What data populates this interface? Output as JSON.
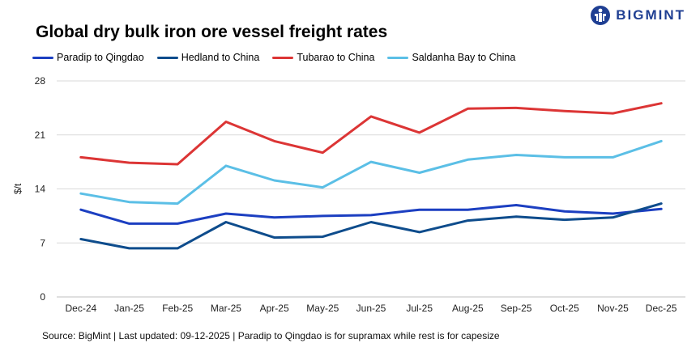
{
  "title": "Global dry bulk iron ore vessel freight rates",
  "brand": {
    "name": "BIGMINT",
    "color": "#1f3f93"
  },
  "source_note": "Source: BigMint | Last updated: 09-12-2025 | Paradip to Qingdao is for supramax while rest is for capesize",
  "chart_data": {
    "type": "line",
    "title": "Global dry bulk iron ore vessel freight rates",
    "xlabel": "",
    "ylabel": "$/t",
    "ylim": [
      0,
      28
    ],
    "yticks": [
      0,
      7,
      14,
      21,
      28
    ],
    "grid": true,
    "legend_position": "top-left",
    "categories": [
      "Dec-24",
      "Jan-25",
      "Feb-25",
      "Mar-25",
      "Apr-25",
      "May-25",
      "Jun-25",
      "Jul-25",
      "Aug-25",
      "Sep-25",
      "Oct-25",
      "Nov-25",
      "Dec-25"
    ],
    "series": [
      {
        "name": "Paradip to Qingdao",
        "color": "#1c3fc1",
        "values": [
          11.3,
          9.5,
          9.5,
          10.8,
          10.3,
          10.5,
          10.6,
          11.3,
          11.3,
          11.9,
          11.1,
          10.8,
          11.4
        ]
      },
      {
        "name": "Hedland to China",
        "color": "#0e4c8c",
        "values": [
          7.5,
          6.3,
          6.3,
          9.7,
          7.7,
          7.8,
          9.7,
          8.4,
          9.9,
          10.4,
          10.0,
          10.3,
          12.1
        ]
      },
      {
        "name": "Tubarao to China",
        "color": "#dc3535",
        "values": [
          18.1,
          17.4,
          17.2,
          22.7,
          20.2,
          18.7,
          23.4,
          21.3,
          24.4,
          24.5,
          24.1,
          23.8,
          25.1
        ]
      },
      {
        "name": "Saldanha Bay to China",
        "color": "#5bbfe6",
        "values": [
          13.4,
          12.3,
          12.1,
          17.0,
          15.1,
          14.2,
          17.5,
          16.1,
          17.8,
          18.4,
          18.1,
          18.1,
          20.2
        ]
      }
    ]
  }
}
